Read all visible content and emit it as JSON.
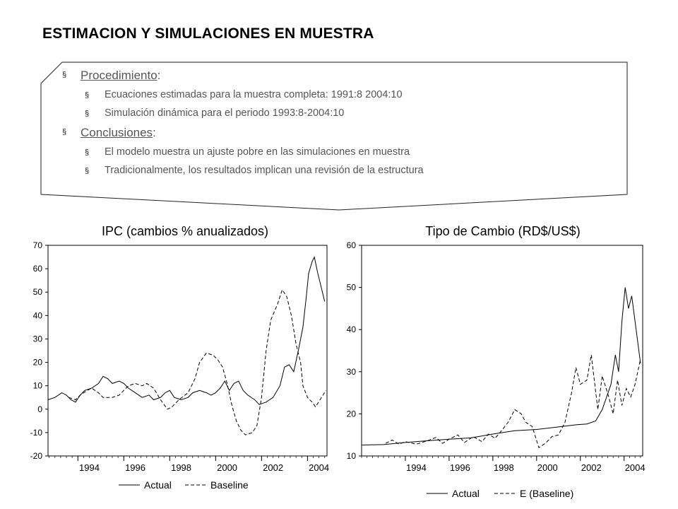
{
  "slide": {
    "title": "ESTIMACION Y SIMULACIONES EN MUESTRA",
    "bullets": [
      {
        "label": "Procedimiento",
        "suffix": ":",
        "items": [
          "Ecuaciones estimadas para la muestra completa: 1991:8 2004:10",
          "Simulación dinámica para el periodo 1993:8-2004:10"
        ]
      },
      {
        "label": "Conclusiones",
        "suffix": ":",
        "items": [
          "El modelo muestra un ajuste pobre en las simulaciones en muestra",
          "Tradicionalmente, los resultados implican una revisión de la estructura"
        ]
      }
    ],
    "bullet_marker": "§"
  },
  "chart_data": [
    {
      "type": "line",
      "title": "IPC (cambios % anualizados)",
      "xlim": [
        1992.7,
        2004.85
      ],
      "ylim": [
        -20,
        70
      ],
      "yticks": [
        -20,
        -10,
        0,
        10,
        20,
        30,
        40,
        50,
        60,
        70
      ],
      "xticks": [
        1994,
        1996,
        1998,
        2000,
        2002,
        2004
      ],
      "grid": false,
      "legend": "bottom",
      "series": [
        {
          "name": "Actual",
          "style": "solid",
          "points": [
            [
              1992.7,
              4
            ],
            [
              1993.0,
              5
            ],
            [
              1993.3,
              7
            ],
            [
              1993.5,
              6
            ],
            [
              1993.7,
              4
            ],
            [
              1993.9,
              3
            ],
            [
              1994.1,
              6
            ],
            [
              1994.3,
              8
            ],
            [
              1994.6,
              9
            ],
            [
              1994.9,
              11
            ],
            [
              1995.1,
              14
            ],
            [
              1995.3,
              13
            ],
            [
              1995.5,
              11
            ],
            [
              1995.8,
              12
            ],
            [
              1996.0,
              11
            ],
            [
              1996.2,
              9
            ],
            [
              1996.5,
              7
            ],
            [
              1996.8,
              5
            ],
            [
              1997.1,
              6
            ],
            [
              1997.3,
              4
            ],
            [
              1997.6,
              5
            ],
            [
              1997.8,
              7
            ],
            [
              1998.0,
              8
            ],
            [
              1998.2,
              5
            ],
            [
              1998.5,
              4
            ],
            [
              1998.8,
              5
            ],
            [
              1999.0,
              7
            ],
            [
              1999.3,
              8
            ],
            [
              1999.6,
              7
            ],
            [
              1999.8,
              6
            ],
            [
              2000.0,
              7
            ],
            [
              2000.2,
              9
            ],
            [
              2000.4,
              12
            ],
            [
              2000.6,
              8
            ],
            [
              2000.8,
              11
            ],
            [
              2001.0,
              12
            ],
            [
              2001.2,
              8
            ],
            [
              2001.4,
              6
            ],
            [
              2001.7,
              4
            ],
            [
              2001.9,
              2
            ],
            [
              2002.2,
              3
            ],
            [
              2002.5,
              5
            ],
            [
              2002.8,
              10
            ],
            [
              2003.0,
              18
            ],
            [
              2003.2,
              19
            ],
            [
              2003.4,
              16
            ],
            [
              2003.6,
              25
            ],
            [
              2003.8,
              35
            ],
            [
              2003.95,
              48
            ],
            [
              2004.05,
              58
            ],
            [
              2004.2,
              63
            ],
            [
              2004.3,
              65
            ],
            [
              2004.45,
              58
            ],
            [
              2004.6,
              52
            ],
            [
              2004.75,
              46
            ]
          ]
        },
        {
          "name": "Baseline",
          "style": "dashed",
          "points": [
            [
              1993.6,
              5
            ],
            [
              1993.9,
              4
            ],
            [
              1994.1,
              6
            ],
            [
              1994.4,
              8
            ],
            [
              1994.6,
              9
            ],
            [
              1994.9,
              7
            ],
            [
              1995.1,
              5
            ],
            [
              1995.5,
              5
            ],
            [
              1995.8,
              6
            ],
            [
              1996.0,
              8
            ],
            [
              1996.2,
              10
            ],
            [
              1996.5,
              11
            ],
            [
              1996.8,
              10
            ],
            [
              1997.0,
              11
            ],
            [
              1997.3,
              9
            ],
            [
              1997.6,
              4
            ],
            [
              1997.9,
              0
            ],
            [
              1998.1,
              1
            ],
            [
              1998.4,
              4
            ],
            [
              1998.8,
              7
            ],
            [
              1999.1,
              13
            ],
            [
              1999.3,
              20
            ],
            [
              1999.6,
              24
            ],
            [
              1999.9,
              23
            ],
            [
              2000.1,
              21
            ],
            [
              2000.3,
              18
            ],
            [
              2000.5,
              11
            ],
            [
              2000.7,
              2
            ],
            [
              2000.9,
              -5
            ],
            [
              2001.1,
              -9
            ],
            [
              2001.3,
              -11
            ],
            [
              2001.6,
              -10
            ],
            [
              2001.8,
              -7
            ],
            [
              2002.0,
              5
            ],
            [
              2002.2,
              25
            ],
            [
              2002.4,
              38
            ],
            [
              2002.7,
              45
            ],
            [
              2002.9,
              51
            ],
            [
              2003.1,
              48
            ],
            [
              2003.3,
              40
            ],
            [
              2003.5,
              28
            ],
            [
              2003.7,
              20
            ],
            [
              2003.8,
              10
            ],
            [
              2004.0,
              5
            ],
            [
              2004.2,
              3
            ],
            [
              2004.35,
              1
            ],
            [
              2004.55,
              4
            ],
            [
              2004.8,
              8
            ]
          ]
        }
      ]
    },
    {
      "type": "line",
      "title": "Tipo de Cambio (RD$/US$)",
      "xlim": [
        1992.0,
        2004.85
      ],
      "ylim": [
        10,
        60
      ],
      "yticks": [
        10,
        20,
        30,
        40,
        50,
        60
      ],
      "xticks": [
        1994,
        1996,
        1998,
        2000,
        2002,
        2004
      ],
      "grid": false,
      "legend": "bottom",
      "series": [
        {
          "name": "Actual",
          "style": "solid",
          "points": [
            [
              1992.0,
              12.6
            ],
            [
              1993.0,
              12.7
            ],
            [
              1994.0,
              13.2
            ],
            [
              1995.0,
              13.6
            ],
            [
              1996.0,
              14.0
            ],
            [
              1997.0,
              14.3
            ],
            [
              1998.0,
              15.2
            ],
            [
              1998.5,
              15.6
            ],
            [
              1999.0,
              16.0
            ],
            [
              2000.0,
              16.3
            ],
            [
              2001.0,
              16.9
            ],
            [
              2001.8,
              17.4
            ],
            [
              2002.3,
              17.6
            ],
            [
              2002.7,
              18.3
            ],
            [
              2003.0,
              21
            ],
            [
              2003.2,
              24
            ],
            [
              2003.4,
              27
            ],
            [
              2003.6,
              34
            ],
            [
              2003.75,
              30
            ],
            [
              2003.9,
              42
            ],
            [
              2004.05,
              50
            ],
            [
              2004.2,
              45
            ],
            [
              2004.35,
              48
            ],
            [
              2004.55,
              40
            ],
            [
              2004.75,
              32
            ]
          ]
        },
        {
          "name": "E (Baseline)",
          "style": "dashed",
          "points": [
            [
              1993.1,
              13
            ],
            [
              1993.4,
              13.8
            ],
            [
              1993.7,
              12.8
            ],
            [
              1994.0,
              13.4
            ],
            [
              1994.5,
              12.8
            ],
            [
              1995.0,
              13.6
            ],
            [
              1995.4,
              14.4
            ],
            [
              1995.7,
              13
            ],
            [
              1996.0,
              14
            ],
            [
              1996.4,
              15
            ],
            [
              1996.7,
              13.2
            ],
            [
              1997.1,
              14.6
            ],
            [
              1997.5,
              13.4
            ],
            [
              1997.8,
              15.2
            ],
            [
              1998.1,
              14.2
            ],
            [
              1998.4,
              16
            ],
            [
              1998.7,
              18
            ],
            [
              1999.0,
              21
            ],
            [
              1999.3,
              20
            ],
            [
              1999.5,
              18
            ],
            [
              1999.8,
              17
            ],
            [
              2000.1,
              12
            ],
            [
              2000.4,
              13
            ],
            [
              2000.7,
              14.6
            ],
            [
              2001.0,
              15
            ],
            [
              2001.3,
              18
            ],
            [
              2001.6,
              25
            ],
            [
              2001.8,
              31
            ],
            [
              2002.0,
              27
            ],
            [
              2002.3,
              28
            ],
            [
              2002.5,
              34
            ],
            [
              2002.8,
              21
            ],
            [
              2003.0,
              29
            ],
            [
              2003.3,
              24
            ],
            [
              2003.5,
              20
            ],
            [
              2003.7,
              28
            ],
            [
              2003.9,
              22
            ],
            [
              2004.1,
              26
            ],
            [
              2004.3,
              24
            ],
            [
              2004.5,
              27
            ],
            [
              2004.75,
              33
            ]
          ]
        }
      ]
    }
  ]
}
